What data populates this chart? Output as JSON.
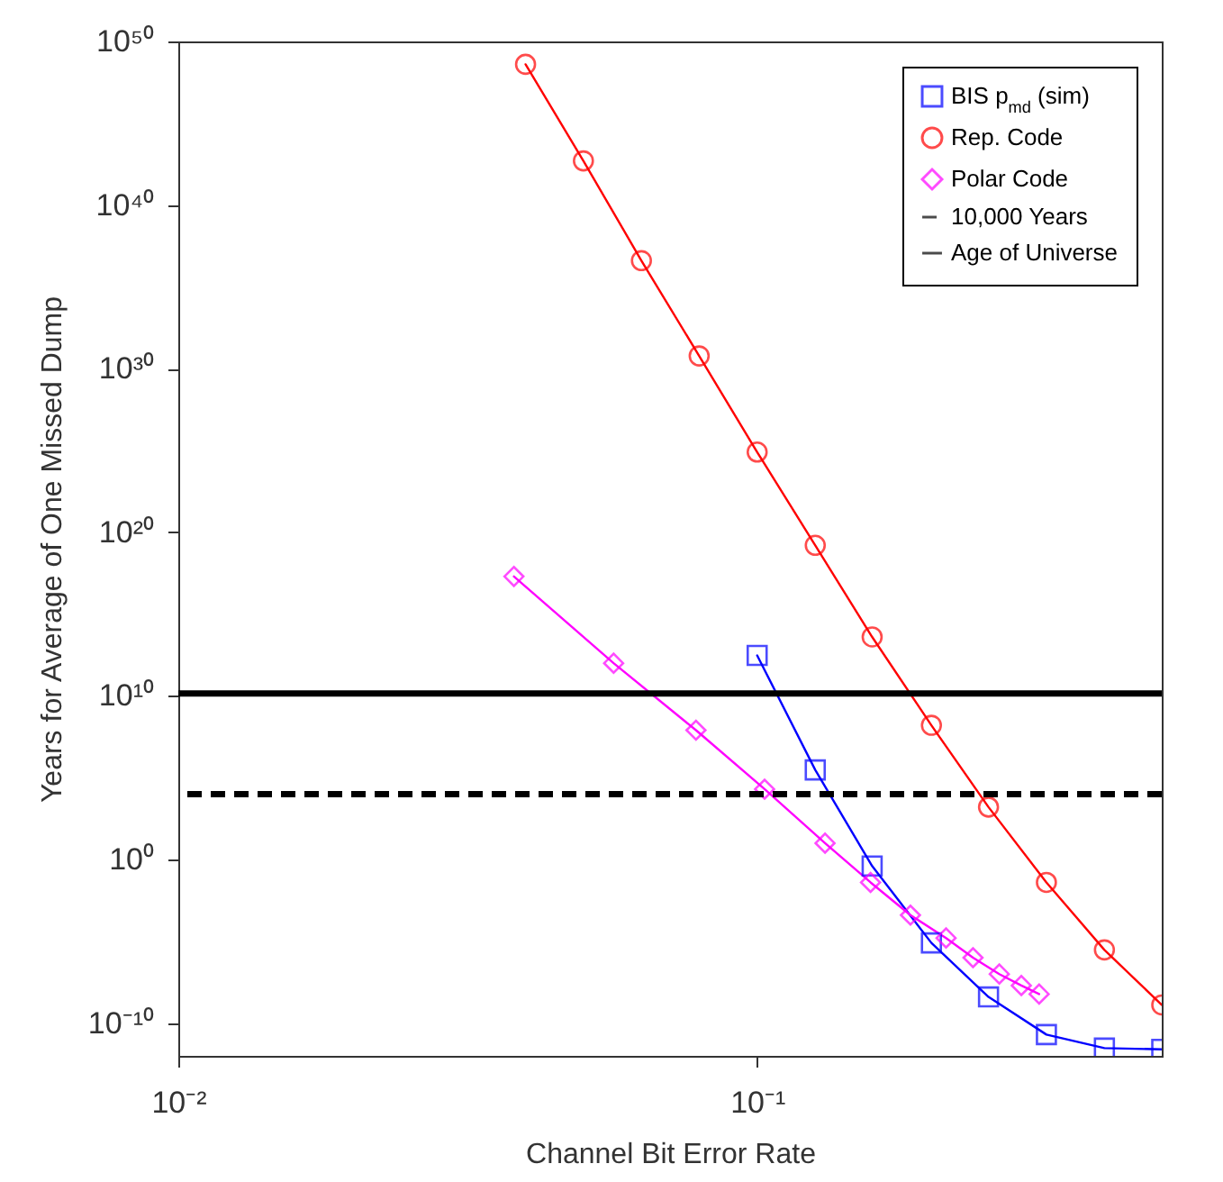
{
  "chart_data": {
    "type": "line",
    "xlabel": "Channel Bit Error Rate",
    "ylabel": "Years for Average of One Missed Dump",
    "log": "xy",
    "xlim": [
      0.01,
      0.5
    ],
    "xticks": [
      {
        "value": 0.01,
        "label": "10⁻²"
      },
      {
        "value": 0.1,
        "label": "10⁻¹"
      }
    ],
    "ylim": [
      1e-12,
      1e+50
    ],
    "yticks": [
      {
        "value": 1e-10,
        "label": "10⁻¹⁰"
      },
      {
        "value": 1,
        "label": "10⁰"
      },
      {
        "value": 10000000000.0,
        "label": "10¹⁰"
      },
      {
        "value": 1e+20,
        "label": "10²⁰"
      },
      {
        "value": 1e+30,
        "label": "10³⁰"
      },
      {
        "value": 1e+40,
        "label": "10⁴⁰"
      },
      {
        "value": 1e+50,
        "label": "10⁵⁰"
      }
    ],
    "grid": false,
    "legend": "top right",
    "line_style": "solid",
    "series": [
      {
        "name": "BIS p$_{md}$ (sim)",
        "color": "#0000ff",
        "marker": "square",
        "x": [
          0.1,
          0.126,
          0.158,
          0.2,
          0.251,
          0.316,
          0.398,
          0.5
        ],
        "values": [
          3000000000000.0,
          300000.0,
          0.4,
          8e-06,
          4e-09,
          2e-11,
          3e-12,
          2.5e-12
        ]
      },
      {
        "name": "Rep. Code",
        "color": "#ff0000",
        "marker": "circle",
        "x": [
          0.0398,
          0.0501,
          0.0631,
          0.0794,
          0.1,
          0.126,
          0.158,
          0.2,
          0.251,
          0.316,
          0.398,
          0.5
        ],
        "values": [
          4e+48,
          5e+42,
          4e+36,
          6e+30,
          8e+24,
          1.6e+19,
          40000000000000.0,
          160000000.0,
          1600.0,
          0.04,
          3e-06,
          1.3e-09
        ]
      },
      {
        "name": "Polar Code",
        "color": "#ff00ff",
        "marker": "diamond",
        "x": [
          0.038,
          0.0565,
          0.0784,
          0.103,
          0.131,
          0.157,
          0.184,
          0.212,
          0.236,
          0.262,
          0.286,
          0.307
        ],
        "values": [
          2e+17,
          1000000000000.0,
          80000000.0,
          20000.0,
          10,
          0.04,
          0.0004,
          1.6e-05,
          1e-06,
          1e-07,
          2e-08,
          6e-09
        ]
      }
    ],
    "ref_lines": [
      {
        "axis": "y",
        "value": 10000.0,
        "label": "10,000 Years",
        "color": "#000000",
        "line_style": "dashed"
      },
      {
        "axis": "y",
        "value": 14000000000.0,
        "label": "Age of Universe",
        "color": "#000000",
        "line_style": "solid"
      }
    ]
  }
}
